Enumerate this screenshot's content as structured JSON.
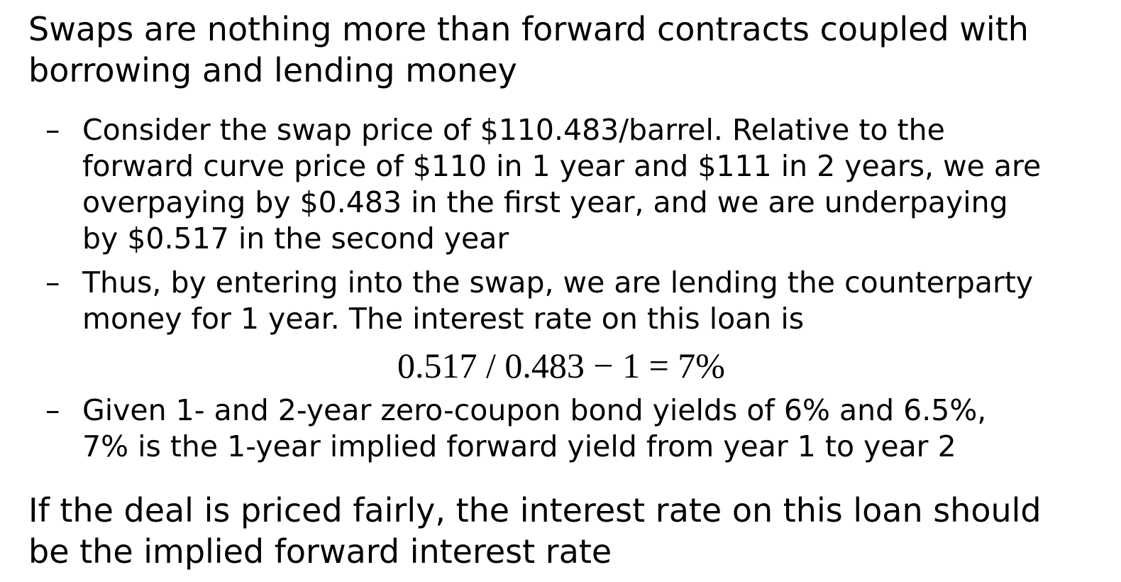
{
  "heading_1": {
    "lines": [
      "Swaps are nothing more than forward contracts coupled with",
      "borrowing and lending money"
    ]
  },
  "bullets": [
    {
      "marker": "–",
      "lines": [
        "Consider the swap price of $110.483/barrel. Relative to the",
        "forward curve price of $110 in 1 year and $111 in 2 years, we are",
        "overpaying by $0.483 in the first year, and we are underpaying",
        "by $0.517 in the second year"
      ]
    },
    {
      "marker": "–",
      "lines": [
        "Thus, by entering into the swap, we are lending the counterparty",
        "money for 1 year. The interest rate on this loan is"
      ]
    },
    {
      "marker": "–",
      "lines": [
        "Given 1- and 2-year zero-coupon bond yields of 6% and 6.5%,",
        "7% is the 1-year implied forward yield from year 1 to year 2"
      ]
    }
  ],
  "formula": "0.517 / 0.483 − 1 = 7%",
  "heading_2": {
    "lines": [
      "If the deal is priced fairly, the interest rate on this loan should",
      "be the implied forward interest rate"
    ]
  }
}
